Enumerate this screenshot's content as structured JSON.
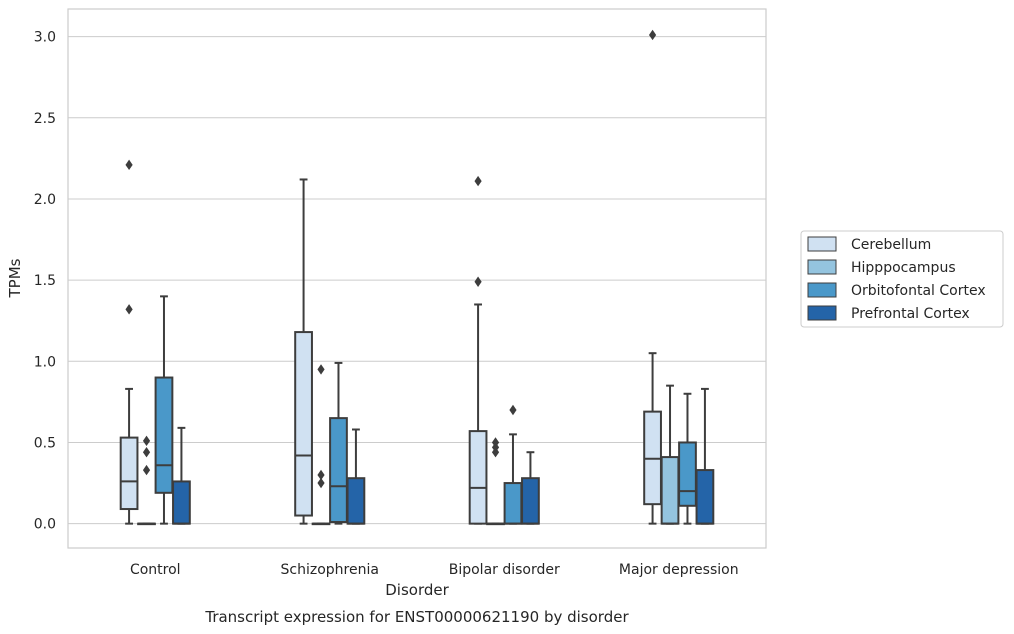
{
  "chart_data": {
    "type": "box",
    "caption": "Transcript expression for ENST00000621190 by disorder",
    "xlabel": "Disorder",
    "ylabel": "TPMs",
    "ylim": [
      -0.15,
      3.17
    ],
    "yticks": [
      "0.0",
      "0.5",
      "1.0",
      "1.5",
      "2.0",
      "2.5",
      "3.0"
    ],
    "grid": true,
    "legend_position": "right",
    "categories": [
      "Control",
      "Schizophrenia",
      "Bipolar disorder",
      "Major depression"
    ],
    "series": [
      {
        "name": "Cerebellum",
        "color": "#d0e1f2",
        "boxes": [
          {
            "whislo": 0.0,
            "q1": 0.09,
            "med": 0.26,
            "q3": 0.53,
            "whishi": 0.83,
            "fliers": [
              1.32,
              2.21
            ]
          },
          {
            "whislo": 0.0,
            "q1": 0.05,
            "med": 0.42,
            "q3": 1.18,
            "whishi": 2.12,
            "fliers": []
          },
          {
            "whislo": 0.0,
            "q1": 0.0,
            "med": 0.22,
            "q3": 0.57,
            "whishi": 1.35,
            "fliers": [
              1.49,
              2.11
            ]
          },
          {
            "whislo": 0.0,
            "q1": 0.12,
            "med": 0.4,
            "q3": 0.69,
            "whishi": 1.05,
            "fliers": [
              3.01
            ]
          }
        ]
      },
      {
        "name": "Hipppocampus",
        "color": "#94c4df",
        "boxes": [
          {
            "whislo": 0.0,
            "q1": 0.0,
            "med": 0.0,
            "q3": 0.0,
            "whishi": 0.0,
            "fliers": [
              0.33,
              0.44,
              0.51
            ]
          },
          {
            "whislo": 0.0,
            "q1": 0.0,
            "med": 0.0,
            "q3": 0.0,
            "whishi": 0.0,
            "fliers": [
              0.25,
              0.3,
              0.95
            ]
          },
          {
            "whislo": 0.0,
            "q1": 0.0,
            "med": 0.0,
            "q3": 0.0,
            "whishi": 0.0,
            "fliers": [
              0.44,
              0.47,
              0.5
            ]
          },
          {
            "whislo": 0.0,
            "q1": 0.0,
            "med": 0.0,
            "q3": 0.41,
            "whishi": 0.85,
            "fliers": []
          }
        ]
      },
      {
        "name": "Orbitofontal Cortex",
        "color": "#4a98c9",
        "boxes": [
          {
            "whislo": 0.0,
            "q1": 0.19,
            "med": 0.36,
            "q3": 0.9,
            "whishi": 1.4,
            "fliers": []
          },
          {
            "whislo": 0.0,
            "q1": 0.01,
            "med": 0.23,
            "q3": 0.65,
            "whishi": 0.99,
            "fliers": []
          },
          {
            "whislo": 0.0,
            "q1": 0.0,
            "med": 0.0,
            "q3": 0.25,
            "whishi": 0.55,
            "fliers": [
              0.7
            ]
          },
          {
            "whislo": 0.0,
            "q1": 0.11,
            "med": 0.2,
            "q3": 0.5,
            "whishi": 0.8,
            "fliers": []
          }
        ]
      },
      {
        "name": "Prefrontal Cortex",
        "color": "#2464a8",
        "boxes": [
          {
            "whislo": 0.0,
            "q1": 0.0,
            "med": 0.0,
            "q3": 0.26,
            "whishi": 0.59,
            "fliers": []
          },
          {
            "whislo": 0.0,
            "q1": 0.0,
            "med": 0.0,
            "q3": 0.28,
            "whishi": 0.58,
            "fliers": []
          },
          {
            "whislo": 0.0,
            "q1": 0.0,
            "med": 0.0,
            "q3": 0.28,
            "whishi": 0.44,
            "fliers": []
          },
          {
            "whislo": 0.0,
            "q1": 0.0,
            "med": 0.0,
            "q3": 0.33,
            "whishi": 0.83,
            "fliers": []
          }
        ]
      }
    ]
  },
  "colors": {
    "line": "#3d3d3d",
    "grid": "#cccccc",
    "frame": "#cccccc"
  }
}
